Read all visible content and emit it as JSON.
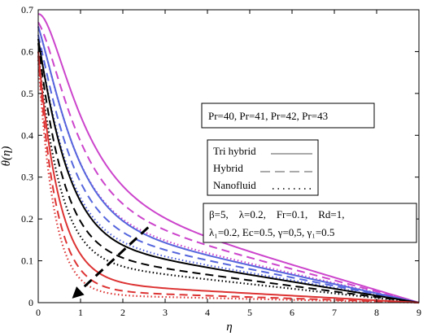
{
  "chart_data": {
    "type": "line",
    "xlabel": "η",
    "ylabel": "θ(η)",
    "xlim": [
      0,
      9
    ],
    "ylim": [
      0,
      0.7
    ],
    "xticks": [
      "0",
      "1",
      "2",
      "3",
      "4",
      "5",
      "6",
      "7",
      "8",
      "9"
    ],
    "yticks": [
      "0",
      "0.1",
      "0.2",
      "0.3",
      "0.4",
      "0.5",
      "0.6",
      "0.7"
    ],
    "grid": false,
    "annotations": {
      "pr_box": "Pr=40, Pr=41, Pr=42, Pr=43",
      "legend": [
        {
          "label": "Tri hybrid",
          "sample": "______"
        },
        {
          "label": "Hybrid",
          "sample": "__ __ __"
        },
        {
          "label": "Nanofluid",
          "sample": "......."
        }
      ],
      "params_line1": "β=5,    λ=0.2,    Fr=0.1,    Rd=1,",
      "params_line2": "λ₁=0.2, Ec=0.5, γ=0,5, γ₁=0.5"
    },
    "series": [
      {
        "style": "solid",
        "color": "#cc44cc",
        "a": 0.69,
        "k": 1.15,
        "c": 0.27,
        "c_end": 0
      },
      {
        "style": "dashed",
        "color": "#cc44cc",
        "a": 0.67,
        "k": 1.3,
        "c": 0.24,
        "c_end": 0
      },
      {
        "style": "dotted",
        "color": "#cc44cc",
        "a": 0.66,
        "k": 1.45,
        "c": 0.21,
        "c_end": 0
      },
      {
        "style": "solid",
        "color": "#5566dd",
        "a": 0.66,
        "k": 1.4,
        "c": 0.2,
        "c_end": 0
      },
      {
        "style": "dashed",
        "color": "#5566dd",
        "a": 0.64,
        "k": 1.55,
        "c": 0.18,
        "c_end": 0
      },
      {
        "style": "dotted",
        "color": "#5566dd",
        "a": 0.63,
        "k": 1.7,
        "c": 0.16,
        "c_end": 0
      },
      {
        "style": "solid",
        "color": "#000000",
        "a": 0.63,
        "k": 1.7,
        "c": 0.15,
        "c_end": 0
      },
      {
        "style": "dashed",
        "color": "#000000",
        "a": 0.62,
        "k": 1.9,
        "c": 0.12,
        "c_end": 0
      },
      {
        "style": "dotted",
        "color": "#000000",
        "a": 0.6,
        "k": 2.1,
        "c": 0.1,
        "c_end": 0
      },
      {
        "style": "solid",
        "color": "#dd3333",
        "a": 0.6,
        "k": 2.1,
        "c": 0.05,
        "c_end": 0
      },
      {
        "style": "dashed",
        "color": "#dd3333",
        "a": 0.59,
        "k": 2.4,
        "c": 0.03,
        "c_end": 0
      },
      {
        "style": "dotted",
        "color": "#dd3333",
        "a": 0.58,
        "k": 2.7,
        "c": 0.02,
        "c_end": 0
      }
    ],
    "arrow": {
      "from": [
        2.6,
        0.18
      ],
      "to": [
        0.8,
        0.01
      ]
    }
  }
}
